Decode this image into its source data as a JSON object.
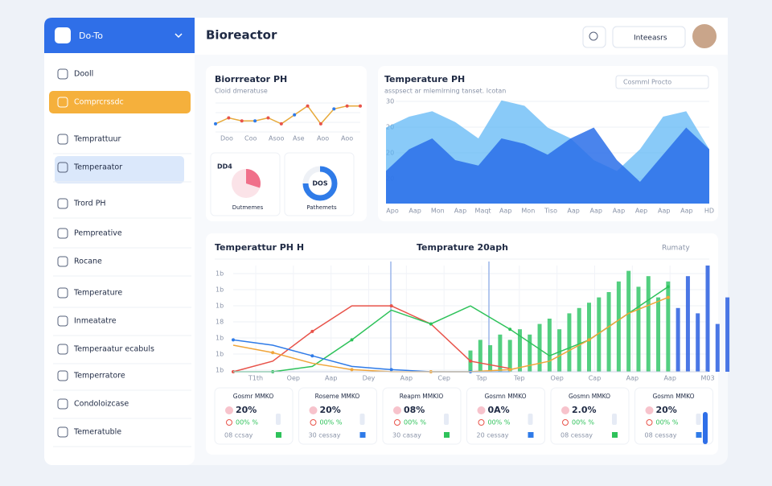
{
  "sidebar": {
    "brand": "Do-To",
    "items": [
      {
        "label": "Dooll"
      },
      {
        "label": "Comprcrssdc",
        "highlight": "#f5b03c"
      },
      {
        "label": "Temprattuur"
      },
      {
        "label": "Temperaator",
        "highlight": "#dbe8fb"
      },
      {
        "label": "Trord PH"
      },
      {
        "label": "Pempreative"
      },
      {
        "label": "Rocane"
      },
      {
        "label": "Temperature"
      },
      {
        "label": "Inmeatatre"
      },
      {
        "label": "Temperaatur ecabuls"
      },
      {
        "label": "Temperratore"
      },
      {
        "label": "Condoloizcase"
      },
      {
        "label": "Temeratuble"
      }
    ]
  },
  "header": {
    "title": "Bioreactor",
    "dropdown": "Inteeasrs"
  },
  "ph_panel": {
    "title": "Biorrreator PH",
    "subtitle": "Cloid dmeratuse",
    "line": {
      "values": [
        3,
        5,
        4,
        4,
        5,
        3,
        6,
        9,
        3,
        8,
        9,
        9
      ],
      "ylim": [
        0,
        10
      ],
      "color": "#e7a93a",
      "x_labels": [
        "Doo",
        "Coo",
        "Asoo",
        "Ase",
        "Aoo",
        "Aoo"
      ]
    },
    "donuts": [
      {
        "title": "DD4",
        "caption": "Dutmemes",
        "value": 30,
        "color": "#f0708a"
      },
      {
        "title": "DOS",
        "caption": "Pathemets",
        "value": 75,
        "color": "#2f7be8"
      }
    ]
  },
  "area_panel": {
    "title": "Temperature PH",
    "subtitle": "asspsect ar mlemlrning tanset. lcotan",
    "dropdown": "Cosmml Procto",
    "y_labels": [
      "30",
      "20",
      "20",
      "20"
    ],
    "ylim": [
      0,
      100
    ],
    "series": [
      {
        "color": "#57b4f5",
        "values": [
          70,
          80,
          85,
          75,
          60,
          95,
          90,
          70,
          60,
          40,
          30,
          50,
          80,
          85,
          50
        ]
      },
      {
        "color": "#2a6fe9",
        "values": [
          30,
          50,
          60,
          40,
          35,
          60,
          55,
          45,
          60,
          70,
          40,
          20,
          45,
          70,
          50
        ]
      }
    ],
    "x_labels": [
      "Apo",
      "Aap",
      "Mon",
      "Aap",
      "Maqt",
      "Aap",
      "Mon",
      "Tiso",
      "Aap",
      "Aap",
      "Aap",
      "Aep",
      "Aap",
      "Aap",
      "HD"
    ]
  },
  "trend_panel": {
    "title": "Temperattur PH H",
    "center_title": "Temprature 20aph",
    "dropdown": "Rumaty",
    "xlim": [
      0,
      12
    ],
    "ylim": [
      0,
      100
    ],
    "y_labels": [
      "1b",
      "1b",
      "1b",
      "18",
      "1b",
      "1b",
      "1b"
    ],
    "x_labels": [
      "T1th",
      "Oep",
      "Aap",
      "Dey",
      "Aap",
      "Cep",
      "Tap",
      "Tep",
      "Oep",
      "Cap",
      "Aap",
      "Aap",
      "M03"
    ],
    "lines": [
      {
        "color": "#e8534a",
        "values": [
          0,
          10,
          38,
          62,
          62,
          45,
          10,
          3,
          null,
          null,
          null,
          null,
          null
        ]
      },
      {
        "color": "#2ec25a",
        "values": [
          0,
          0,
          5,
          30,
          58,
          45,
          62,
          40,
          15,
          30,
          55,
          80,
          null
        ]
      },
      {
        "color": "#2f7be8",
        "values": [
          30,
          25,
          15,
          5,
          2,
          0,
          0,
          0,
          null,
          null,
          null,
          null,
          null
        ]
      },
      {
        "color": "#f0a53a",
        "values": [
          25,
          18,
          8,
          2,
          0,
          0,
          0,
          2,
          10,
          30,
          55,
          70,
          null
        ]
      }
    ],
    "bars": [
      {
        "color": "#35c76a",
        "x": [
          6,
          6.25,
          6.5,
          6.75,
          7,
          7.25,
          7.5,
          7.75,
          8,
          8.25,
          8.5,
          8.75,
          9,
          9.25,
          9.5,
          9.75,
          10,
          10.25,
          10.5,
          10.75,
          11
        ],
        "values": [
          20,
          30,
          25,
          35,
          30,
          40,
          35,
          45,
          50,
          40,
          55,
          60,
          65,
          70,
          75,
          85,
          95,
          80,
          90,
          70,
          85
        ]
      },
      {
        "color": "#2a5fe0",
        "x": [
          11.25,
          11.5,
          11.75,
          12,
          12.25,
          12.5
        ],
        "values": [
          60,
          90,
          55,
          100,
          45,
          70
        ]
      }
    ]
  },
  "stats": [
    {
      "label": "Gosmr MMKO",
      "value": "20%",
      "sub": "00% %",
      "foot": "08 ccsay"
    },
    {
      "label": "Roseme MMKO",
      "value": "20%",
      "sub": "00% %",
      "foot": "30 cessay"
    },
    {
      "label": "Reapm MMKIO",
      "value": "08%",
      "sub": "00% %",
      "foot": "30 casay"
    },
    {
      "label": "Gosmn MMKO",
      "value": "0A%",
      "sub": "00% %",
      "foot": "20 cessay"
    },
    {
      "label": "Gosmn MMKO",
      "value": "2.0%",
      "sub": "00% %",
      "foot": "08 cessay"
    },
    {
      "label": "Gosmn MMKO",
      "value": "20%",
      "sub": "00% %",
      "foot": "08 cessay"
    }
  ]
}
